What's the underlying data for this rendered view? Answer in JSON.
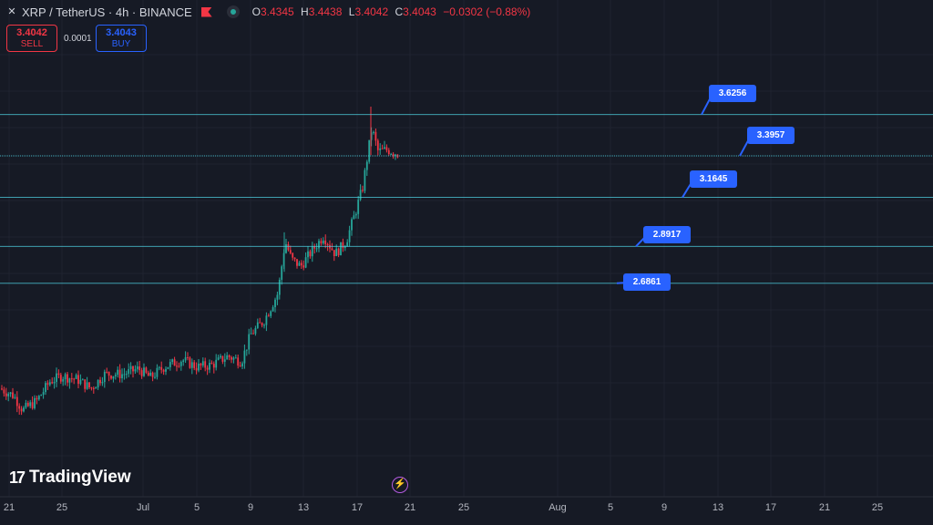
{
  "header": {
    "symbol_icon": "xrp-icon",
    "title": "XRP / TetherUS · 4h · BINANCE",
    "ohlc": {
      "o_label": "O",
      "o": "3.4345",
      "h_label": "H",
      "h": "3.4438",
      "l_label": "L",
      "l": "3.4042",
      "c_label": "C",
      "c": "3.4043",
      "change": "−0.0302 (−0.88%)"
    },
    "down_color": "#f23645",
    "up_color": "#26a69a"
  },
  "trade": {
    "sell_price": "3.4042",
    "sell_label": "SELL",
    "spread": "0.0001",
    "buy_price": "3.4043",
    "buy_label": "BUY"
  },
  "levels": [
    {
      "label": "3.6256",
      "value": 3.6256
    },
    {
      "label": "3.3957",
      "value": 3.3957
    },
    {
      "label": "3.1645",
      "value": 3.1645
    },
    {
      "label": "2.8917",
      "value": 2.8917
    },
    {
      "label": "2.6861",
      "value": 2.6861
    }
  ],
  "x_axis": [
    "21",
    "25",
    "Jul",
    "5",
    "9",
    "13",
    "17",
    "21",
    "25",
    "Aug",
    "5",
    "9",
    "13",
    "17",
    "21",
    "25"
  ],
  "logo": "TradingView",
  "icons": {
    "flag": "flag-icon",
    "visibility": "eye-icon",
    "replay": "lightning-icon"
  },
  "chart_data": {
    "type": "candlestick",
    "symbol": "XRPUSDT",
    "timeframe": "4h",
    "approx_path": [
      {
        "date": "Jun 21",
        "close": 2.1
      },
      {
        "date": "Jun 23",
        "close": 1.98
      },
      {
        "date": "Jun 25",
        "close": 2.17
      },
      {
        "date": "Jun 29",
        "close": 2.18
      },
      {
        "date": "Jul 1",
        "close": 2.21
      },
      {
        "date": "Jul 3",
        "close": 2.26
      },
      {
        "date": "Jul 5",
        "close": 2.22
      },
      {
        "date": "Jul 8",
        "close": 2.28
      },
      {
        "date": "Jul 9",
        "close": 2.4
      },
      {
        "date": "Jul 10",
        "close": 2.55
      },
      {
        "date": "Jul 11",
        "close": 2.88
      },
      {
        "date": "Jul 12",
        "close": 2.75
      },
      {
        "date": "Jul 14",
        "close": 2.92
      },
      {
        "date": "Jul 15",
        "close": 2.9
      },
      {
        "date": "Jul 16",
        "close": 3.05
      },
      {
        "date": "Jul 17",
        "close": 3.35
      },
      {
        "date": "Jul 18",
        "close": 3.55
      },
      {
        "date": "Jul 19",
        "close": 3.45
      },
      {
        "date": "Jul 20",
        "close": 3.4043
      }
    ],
    "horizontal_levels": [
      3.6256,
      3.3957,
      3.1645,
      2.8917,
      2.6861
    ]
  }
}
